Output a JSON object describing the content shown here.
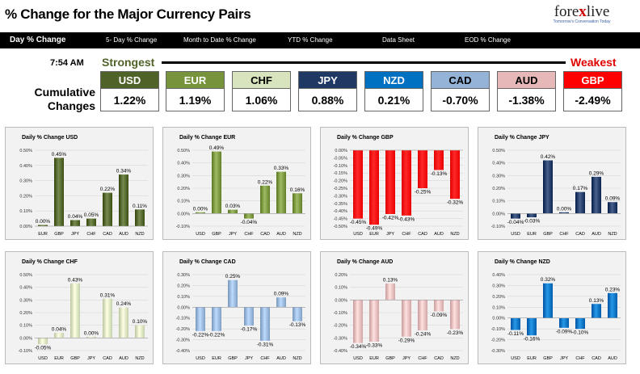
{
  "page": {
    "title": "% Change for the Major Currency Pairs"
  },
  "logo": {
    "brand_part1": "fore",
    "brand_part2": "x",
    "brand_part3": "live",
    "tagline": "Tomorrow's Conversation Today"
  },
  "tabs": [
    {
      "label": "Day % Change"
    },
    {
      "label": "5- Day % Change"
    },
    {
      "label": "Month to Date % Change"
    },
    {
      "label": "YTD % Change"
    },
    {
      "label": "Data Sheet"
    },
    {
      "label": "EOD % Change"
    }
  ],
  "summary": {
    "time": "7:54 AM",
    "strongest_label": "Strongest",
    "weakest_label": "Weakest",
    "row_label_line1": "Cumulative",
    "row_label_line2": "Changes",
    "currencies": [
      {
        "name": "USD",
        "value": "1.22%",
        "color": "#4f6228",
        "text": "#ffffff"
      },
      {
        "name": "EUR",
        "value": "1.19%",
        "color": "#77933c",
        "text": "#ffffff"
      },
      {
        "name": "CHF",
        "value": "1.06%",
        "color": "#d7e4bd",
        "text": "#000000"
      },
      {
        "name": "JPY",
        "value": "0.88%",
        "color": "#1f3864",
        "text": "#ffffff"
      },
      {
        "name": "NZD",
        "value": "0.21%",
        "color": "#0070c0",
        "text": "#ffffff"
      },
      {
        "name": "CAD",
        "value": "-0.70%",
        "color": "#95b3d7",
        "text": "#000000"
      },
      {
        "name": "AUD",
        "value": "-1.38%",
        "color": "#e6b9b8",
        "text": "#000000"
      },
      {
        "name": "GBP",
        "value": "-2.49%",
        "color": "#ff0000",
        "text": "#ffffff"
      }
    ]
  },
  "chart_data": [
    {
      "type": "bar",
      "title": "Daily % Change USD",
      "categories": [
        "EUR",
        "GBP",
        "JPY",
        "CHF",
        "CAD",
        "AUD",
        "NZD"
      ],
      "values": [
        0.0,
        0.45,
        0.04,
        0.05,
        0.22,
        0.34,
        0.11
      ],
      "labels": [
        "0.00%",
        "0.45%",
        "0.04%",
        "0.05%",
        "0.22%",
        "0.34%",
        "0.11%"
      ],
      "ylim": [
        0,
        0.5
      ],
      "ticks": [
        0,
        0.1,
        0.2,
        0.3,
        0.4,
        0.5
      ],
      "tick_labels": [
        "0.00%",
        "0.10%",
        "0.20%",
        "0.30%",
        "0.40%",
        "0.50%"
      ],
      "color": "#4f6228"
    },
    {
      "type": "bar",
      "title": "Daily % Change EUR",
      "categories": [
        "USD",
        "GBP",
        "JPY",
        "CHF",
        "CAD",
        "AUD",
        "NZD"
      ],
      "values": [
        0.0,
        0.49,
        0.03,
        -0.04,
        0.22,
        0.33,
        0.16
      ],
      "labels": [
        "0.00%",
        "0.49%",
        "0.03%",
        "-0.04%",
        "0.22%",
        "0.33%",
        "0.16%"
      ],
      "ylim": [
        -0.1,
        0.5
      ],
      "ticks": [
        -0.1,
        0,
        0.1,
        0.2,
        0.3,
        0.4,
        0.5
      ],
      "tick_labels": [
        "-0.10%",
        "0.00%",
        "0.10%",
        "0.20%",
        "0.30%",
        "0.40%",
        "0.50%"
      ],
      "color": "#77933c"
    },
    {
      "type": "bar",
      "title": "Daily % Change GBP",
      "categories": [
        "USD",
        "EUR",
        "JPY",
        "CHF",
        "CAD",
        "AUD",
        "NZD"
      ],
      "values": [
        -0.45,
        -0.49,
        -0.42,
        -0.43,
        -0.25,
        -0.13,
        -0.32
      ],
      "labels": [
        "-0.45%",
        "-0.49%",
        "-0.42%",
        "-0.43%",
        "-0.25%",
        "-0.13%",
        "-0.32%"
      ],
      "ylim": [
        -0.5,
        0
      ],
      "ticks": [
        -0.5,
        -0.45,
        -0.4,
        -0.35,
        -0.3,
        -0.25,
        -0.2,
        -0.15,
        -0.1,
        -0.05,
        0
      ],
      "tick_labels": [
        "-0.50%",
        "-0.45%",
        "-0.40%",
        "-0.35%",
        "-0.30%",
        "-0.25%",
        "-0.20%",
        "-0.15%",
        "-0.10%",
        "-0.05%",
        "0.00%"
      ],
      "color": "#ff0000"
    },
    {
      "type": "bar",
      "title": "Daily % Change JPY",
      "categories": [
        "USD",
        "EUR",
        "GBP",
        "CHF",
        "CAD",
        "AUD",
        "NZD"
      ],
      "values": [
        -0.04,
        -0.03,
        0.42,
        0.0,
        0.17,
        0.29,
        0.09
      ],
      "labels": [
        "-0.04%",
        "-0.03%",
        "0.42%",
        "0.00%",
        "0.17%",
        "0.29%",
        "0.09%"
      ],
      "ylim": [
        -0.1,
        0.5
      ],
      "ticks": [
        -0.1,
        0,
        0.1,
        0.2,
        0.3,
        0.4,
        0.5
      ],
      "tick_labels": [
        "-0.10%",
        "0.00%",
        "0.10%",
        "0.20%",
        "0.30%",
        "0.40%",
        "0.50%"
      ],
      "color": "#1f3864"
    },
    {
      "type": "bar",
      "title": "Daily % Change CHF",
      "categories": [
        "USD",
        "EUR",
        "GBP",
        "JPY",
        "CAD",
        "AUD",
        "NZD"
      ],
      "values": [
        -0.05,
        0.04,
        0.43,
        0.0,
        0.31,
        0.24,
        0.1
      ],
      "labels": [
        "-0.05%",
        "0.04%",
        "0.43%",
        "0.00%",
        "0.31%",
        "0.24%",
        "0.10%"
      ],
      "ylim": [
        -0.1,
        0.5
      ],
      "ticks": [
        -0.1,
        0,
        0.1,
        0.2,
        0.3,
        0.4,
        0.5
      ],
      "tick_labels": [
        "-0.10%",
        "0.00%",
        "0.10%",
        "0.20%",
        "0.30%",
        "0.40%",
        "0.50%"
      ],
      "color": "#d7e4bd"
    },
    {
      "type": "bar",
      "title": "Daily % Change CAD",
      "categories": [
        "USD",
        "EUR",
        "GBP",
        "JPY",
        "CHF",
        "AUD",
        "NZD"
      ],
      "values": [
        -0.22,
        -0.22,
        0.25,
        -0.17,
        -0.31,
        0.09,
        -0.13
      ],
      "labels": [
        "-0.22%",
        "-0.22%",
        "0.25%",
        "-0.17%",
        "-0.31%",
        "0.09%",
        "-0.13%"
      ],
      "ylim": [
        -0.4,
        0.3
      ],
      "ticks": [
        -0.4,
        -0.3,
        -0.2,
        -0.1,
        0,
        0.1,
        0.2,
        0.3
      ],
      "tick_labels": [
        "-0.40%",
        "-0.30%",
        "-0.20%",
        "-0.10%",
        "0.00%",
        "0.10%",
        "0.20%",
        "0.30%"
      ],
      "color": "#95b3d7"
    },
    {
      "type": "bar",
      "title": "Daily % Change AUD",
      "categories": [
        "USD",
        "EUR",
        "GBP",
        "JPY",
        "CHF",
        "CAD",
        "NZD"
      ],
      "values": [
        -0.34,
        -0.33,
        0.13,
        -0.29,
        -0.24,
        -0.09,
        -0.23
      ],
      "labels": [
        "-0.34%",
        "-0.33%",
        "0.13%",
        "-0.29%",
        "-0.24%",
        "-0.09%",
        "-0.23%"
      ],
      "ylim": [
        -0.4,
        0.2
      ],
      "ticks": [
        -0.4,
        -0.3,
        -0.2,
        -0.1,
        0,
        0.1,
        0.2
      ],
      "tick_labels": [
        "-0.40%",
        "-0.30%",
        "-0.20%",
        "-0.10%",
        "0.00%",
        "0.10%",
        "0.20%"
      ],
      "color": "#e6b9b8"
    },
    {
      "type": "bar",
      "title": "Daily % Change NZD",
      "categories": [
        "USD",
        "EUR",
        "GBP",
        "JPY",
        "CHF",
        "CAD",
        "AUD"
      ],
      "values": [
        -0.11,
        -0.16,
        0.32,
        -0.09,
        -0.1,
        0.13,
        0.23
      ],
      "labels": [
        "-0.11%",
        "-0.16%",
        "0.32%",
        "-0.09%",
        "-0.10%",
        "0.13%",
        "0.23%"
      ],
      "ylim": [
        -0.3,
        0.4
      ],
      "ticks": [
        -0.3,
        -0.2,
        -0.1,
        0,
        0.1,
        0.2,
        0.3,
        0.4
      ],
      "tick_labels": [
        "-0.30%",
        "-0.20%",
        "-0.10%",
        "0.00%",
        "0.10%",
        "0.20%",
        "0.30%",
        "0.40%"
      ],
      "color": "#0070c0"
    }
  ]
}
